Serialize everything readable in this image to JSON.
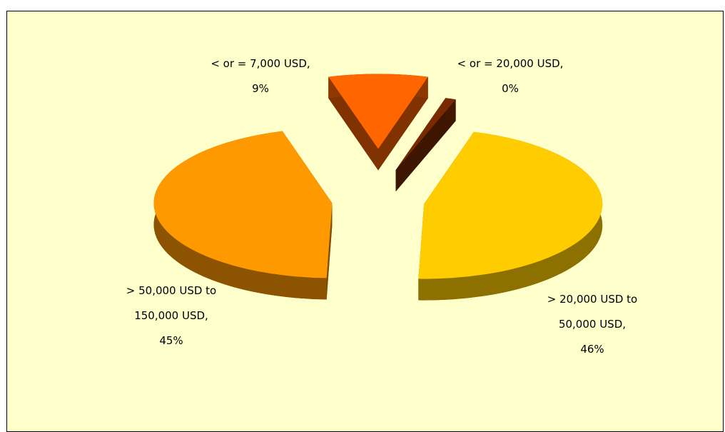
{
  "chart_data": {
    "type": "pie",
    "categories": [
      "< or = 7,000 USD,",
      "< or = 20,000 USD,",
      "> 20,000 USD to 50,000 USD,",
      "> 50,000 USD to 150,000 USD,"
    ],
    "values": [
      9,
      0,
      46,
      45
    ],
    "value_labels": [
      "9%",
      "0%",
      "46%",
      "45%"
    ],
    "colors": [
      "#ff6600",
      "#7a2a00",
      "#ffcc00",
      "#ff9900"
    ]
  }
}
